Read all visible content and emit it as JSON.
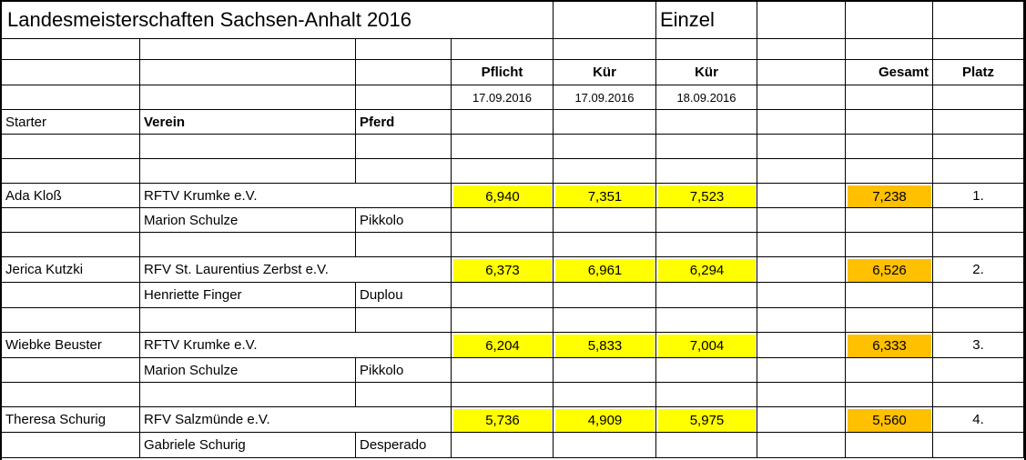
{
  "title": "Landesmeisterschaften Sachsen-Anhalt 2016",
  "category": "Einzel",
  "headers": {
    "pflicht": "Pflicht",
    "kuer1": "Kür",
    "kuer2": "Kür",
    "gesamt": "Gesamt",
    "platz": "Platz",
    "date_pflicht": "17.09.2016",
    "date_kuer1": "17.09.2016",
    "date_kuer2": "18.09.2016",
    "starter": "Starter",
    "verein": "Verein",
    "pferd": "Pferd"
  },
  "colors": {
    "score_highlight": "#ffff00",
    "total_highlight": "#ffc000"
  },
  "entries": [
    {
      "starter": "Ada Kloß",
      "verein": "RFTV Krumke e.V.",
      "longeur": "Marion Schulze",
      "pferd": "Pikkolo",
      "pflicht": "6,940",
      "kuer1": "7,351",
      "kuer2": "7,523",
      "gesamt": "7,238",
      "platz": "1."
    },
    {
      "starter": "Jerica Kutzki",
      "verein": "RFV St. Laurentius Zerbst e.V.",
      "longeur": "Henriette Finger",
      "pferd": "Duplou",
      "pflicht": "6,373",
      "kuer1": "6,961",
      "kuer2": "6,294",
      "gesamt": "6,526",
      "platz": "2."
    },
    {
      "starter": "Wiebke Beuster",
      "verein": "RFTV Krumke e.V.",
      "longeur": "Marion Schulze",
      "pferd": "Pikkolo",
      "pflicht": "6,204",
      "kuer1": "5,833",
      "kuer2": "7,004",
      "gesamt": "6,333",
      "platz": "3."
    },
    {
      "starter": "Theresa Schurig",
      "verein": "RFV Salzmünde e.V.",
      "longeur": "Gabriele Schurig",
      "pferd": "Desperado",
      "pflicht": "5,736",
      "kuer1": "4,909",
      "kuer2": "5,975",
      "gesamt": "5,560",
      "platz": "4."
    }
  ]
}
